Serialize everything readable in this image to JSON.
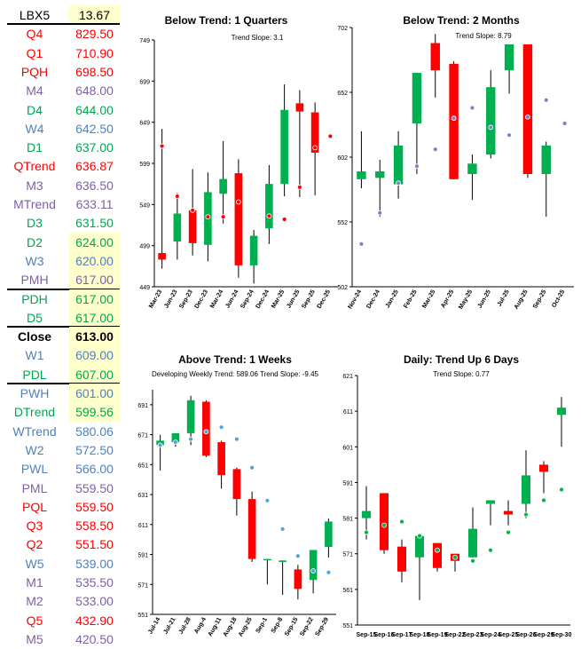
{
  "levels": [
    {
      "label": "LBX5",
      "value": "13.67",
      "color": "#000000",
      "highlight": true,
      "bold": false
    },
    {
      "label": "Q4",
      "value": "829.50",
      "color": "#ff0000",
      "highlight": false,
      "bold": false
    },
    {
      "label": "Q1",
      "value": "710.90",
      "color": "#ff0000",
      "highlight": false,
      "bold": false
    },
    {
      "label": "PQH",
      "value": "698.50",
      "color": "#ff0000",
      "highlight": false,
      "bold": false
    },
    {
      "label": "M4",
      "value": "648.00",
      "color": "#7f5fa6",
      "highlight": false,
      "bold": false
    },
    {
      "label": "D4",
      "value": "644.00",
      "color": "#00a651",
      "highlight": false,
      "bold": false
    },
    {
      "label": "W4",
      "value": "642.50",
      "color": "#4f81bd",
      "highlight": false,
      "bold": false
    },
    {
      "label": "D1",
      "value": "637.00",
      "color": "#00a651",
      "highlight": false,
      "bold": false
    },
    {
      "label": "QTrend",
      "value": "636.87",
      "color": "#ff0000",
      "highlight": false,
      "bold": false
    },
    {
      "label": "M3",
      "value": "636.50",
      "color": "#7f5fa6",
      "highlight": false,
      "bold": false
    },
    {
      "label": "MTrend",
      "value": "633.11",
      "color": "#7f5fa6",
      "highlight": false,
      "bold": false
    },
    {
      "label": "D3",
      "value": "631.50",
      "color": "#00a651",
      "highlight": false,
      "bold": false
    },
    {
      "label": "D2",
      "value": "624.00",
      "color": "#00a651",
      "highlight": true,
      "bold": false
    },
    {
      "label": "W3",
      "value": "620.00",
      "color": "#4f81bd",
      "highlight": true,
      "bold": false
    },
    {
      "label": "PMH",
      "value": "617.00",
      "color": "#7f5fa6",
      "highlight": true,
      "bold": false
    },
    {
      "label": "PDH",
      "value": "617.00",
      "color": "#00a651",
      "highlight": true,
      "bold": false
    },
    {
      "label": "D5",
      "value": "617.00",
      "color": "#00a651",
      "highlight": true,
      "bold": false
    },
    {
      "label": "Close",
      "value": "613.00",
      "color": "#000000",
      "highlight": true,
      "bold": true
    },
    {
      "label": "W1",
      "value": "609.00",
      "color": "#4f81bd",
      "highlight": true,
      "bold": false
    },
    {
      "label": "PDL",
      "value": "607.00",
      "color": "#00a651",
      "highlight": true,
      "bold": false
    },
    {
      "label": "PWH",
      "value": "601.00",
      "color": "#4f81bd",
      "highlight": true,
      "bold": false
    },
    {
      "label": "DTrend",
      "value": "599.56",
      "color": "#00a651",
      "highlight": true,
      "bold": false
    },
    {
      "label": "WTrend",
      "value": "580.06",
      "color": "#4f81bd",
      "highlight": false,
      "bold": false
    },
    {
      "label": "W2",
      "value": "572.50",
      "color": "#4f81bd",
      "highlight": false,
      "bold": false
    },
    {
      "label": "PWL",
      "value": "566.00",
      "color": "#4f81bd",
      "highlight": false,
      "bold": false
    },
    {
      "label": "PML",
      "value": "559.50",
      "color": "#7f5fa6",
      "highlight": false,
      "bold": false
    },
    {
      "label": "PQL",
      "value": "559.50",
      "color": "#ff0000",
      "highlight": false,
      "bold": false
    },
    {
      "label": "Q3",
      "value": "558.50",
      "color": "#ff0000",
      "highlight": false,
      "bold": false
    },
    {
      "label": "Q2",
      "value": "551.50",
      "color": "#ff0000",
      "highlight": false,
      "bold": false
    },
    {
      "label": "W5",
      "value": "539.00",
      "color": "#4f81bd",
      "highlight": false,
      "bold": false
    },
    {
      "label": "M1",
      "value": "535.50",
      "color": "#7f5fa6",
      "highlight": false,
      "bold": false
    },
    {
      "label": "M2",
      "value": "533.00",
      "color": "#7f5fa6",
      "highlight": false,
      "bold": false
    },
    {
      "label": "Q5",
      "value": "432.90",
      "color": "#ff0000",
      "highlight": false,
      "bold": false
    },
    {
      "label": "M5",
      "value": "420.50",
      "color": "#7f5fa6",
      "highlight": false,
      "bold": false
    }
  ],
  "separators_after": [
    "LBX5",
    "PMH",
    "D5",
    "PDL"
  ],
  "colors": {
    "up": "#00b050",
    "down": "#ff0000",
    "wick": "#000000",
    "highlight": "#ffffcc",
    "trend_red": "#ff0000",
    "trend_blue": "#7f7fd0",
    "trend_lightblue": "#4fa3e0",
    "trend_green": "#00b050"
  },
  "chart_data": [
    {
      "type": "candlestick",
      "title": "Below Trend: 1 Quarters",
      "annotation": "Trend Slope: 3.1",
      "ylim": [
        449,
        749
      ],
      "yticks": [
        449,
        499,
        549,
        599,
        649,
        699,
        749
      ],
      "categories": [
        "Mar-23",
        "Jun-23",
        "Sep-23",
        "Dec-23",
        "Mar-24",
        "Jun-24",
        "Sep-24",
        "Dec-24",
        "Mar-25",
        "Jun-25",
        "Sep-25",
        "Dec-25"
      ],
      "ohlc": [
        [
          490,
          641,
          471,
          482
        ],
        [
          504,
          563,
          482,
          538
        ],
        [
          542,
          592,
          487,
          502
        ],
        [
          500,
          588,
          480,
          564
        ],
        [
          562,
          626,
          526,
          580
        ],
        [
          587,
          604,
          460,
          475
        ],
        [
          475,
          518,
          453,
          511
        ],
        [
          520,
          597,
          501,
          574
        ],
        [
          574,
          695,
          559,
          664
        ],
        [
          672,
          688,
          558,
          662
        ],
        [
          661,
          673,
          560,
          612
        ],
        null
      ],
      "trend": [
        620,
        559,
        542,
        534,
        534,
        552,
        null,
        535,
        531,
        570,
        618,
        632
      ],
      "trend_color": "trend_red"
    },
    {
      "type": "candlestick",
      "title": "Below Trend: 2 Months",
      "annotation": "Trend Slope: 8.79",
      "ylim": [
        502,
        702
      ],
      "yticks": [
        502,
        552,
        602,
        652,
        702
      ],
      "categories": [
        "Nov-24",
        "Dec-24",
        "Jan-25",
        "Feb-25",
        "Mar-25",
        "Apr-25",
        "May-25",
        "Jun-25",
        "Jul-25",
        "Aug-25",
        "Sep-25",
        "Oct-25"
      ],
      "ohlc": [
        [
          585,
          622,
          578,
          591
        ],
        [
          586,
          600,
          556,
          591
        ],
        [
          581,
          622,
          570,
          611
        ],
        [
          628,
          667,
          589,
          667
        ],
        [
          690,
          697,
          648,
          669
        ],
        [
          674,
          676,
          585,
          585
        ],
        [
          589,
          604,
          569,
          597
        ],
        [
          604,
          669,
          601,
          656
        ],
        [
          669,
          689,
          651,
          689
        ],
        [
          689,
          689,
          586,
          589
        ],
        [
          589,
          614,
          556,
          611
        ],
        null
      ],
      "trend": [
        535,
        559,
        582,
        595,
        608,
        632,
        640,
        625,
        619,
        633,
        646,
        628
      ],
      "trend_color": "trend_blue"
    },
    {
      "type": "candlestick",
      "title": "Above Trend: 1 Weeks",
      "annotation": "Developing Weekly Trend: 589.06      Trend Slope: -9.45",
      "ylim": [
        551,
        701
      ],
      "yticks": [
        551,
        571,
        591,
        611,
        631,
        651,
        671,
        691
      ],
      "categories": [
        "Jul-14",
        "Jul-21",
        "Jul-28",
        "Aug-4",
        "Aug-11",
        "Aug-18",
        "Aug-25",
        "Sep-1",
        "Sep-8",
        "Sep-15",
        "Sep-22",
        "Sep-29"
      ],
      "ohlc": [
        [
          664,
          671,
          647,
          667
        ],
        [
          666,
          672,
          663,
          672
        ],
        [
          672,
          697,
          664,
          694
        ],
        [
          693,
          694,
          656,
          657
        ],
        [
          666,
          667,
          635,
          644
        ],
        [
          648,
          649,
          617,
          628
        ],
        [
          628,
          633,
          586,
          588
        ],
        [
          588,
          588,
          571,
          588
        ],
        [
          586,
          587,
          564,
          587
        ],
        [
          581,
          584,
          561,
          568
        ],
        [
          574,
          593,
          565,
          594
        ],
        [
          596,
          615,
          589,
          613
        ]
      ],
      "trend": [
        664,
        666,
        668,
        673,
        676,
        668,
        649,
        627,
        608,
        590,
        580,
        579
      ],
      "trend_color": "trend_lightblue"
    },
    {
      "type": "candlestick",
      "title": "Daily: Trend Up 6 Days",
      "annotation": "Trend Slope: 0.77",
      "ylim": [
        551,
        621
      ],
      "yticks": [
        551,
        561,
        571,
        581,
        591,
        601,
        611,
        621
      ],
      "categories": [
        "Sep-15",
        "Sep-16",
        "Sep-17",
        "Sep-18",
        "Sep-19",
        "Sep-22",
        "Sep-23",
        "Sep-24",
        "Sep-25",
        "Sep-26",
        "Sep-29",
        "Sep-30"
      ],
      "ohlc": [
        [
          581,
          590,
          575,
          583
        ],
        [
          588,
          588,
          571,
          572
        ],
        [
          573,
          575,
          563,
          566
        ],
        [
          570,
          576,
          558,
          576
        ],
        [
          574,
          574,
          566,
          567
        ],
        [
          571,
          571,
          566,
          569
        ],
        [
          570,
          584,
          570,
          578
        ],
        [
          585,
          586,
          579,
          586
        ],
        [
          583,
          586,
          579,
          582
        ],
        [
          585,
          600,
          581,
          593
        ],
        [
          596,
          597,
          588,
          594
        ],
        [
          610,
          615,
          601,
          612
        ]
      ],
      "trend": [
        577,
        579,
        580,
        576,
        572,
        570,
        569,
        572,
        577,
        582,
        586,
        589
      ],
      "trend_color": "trend_green"
    }
  ]
}
